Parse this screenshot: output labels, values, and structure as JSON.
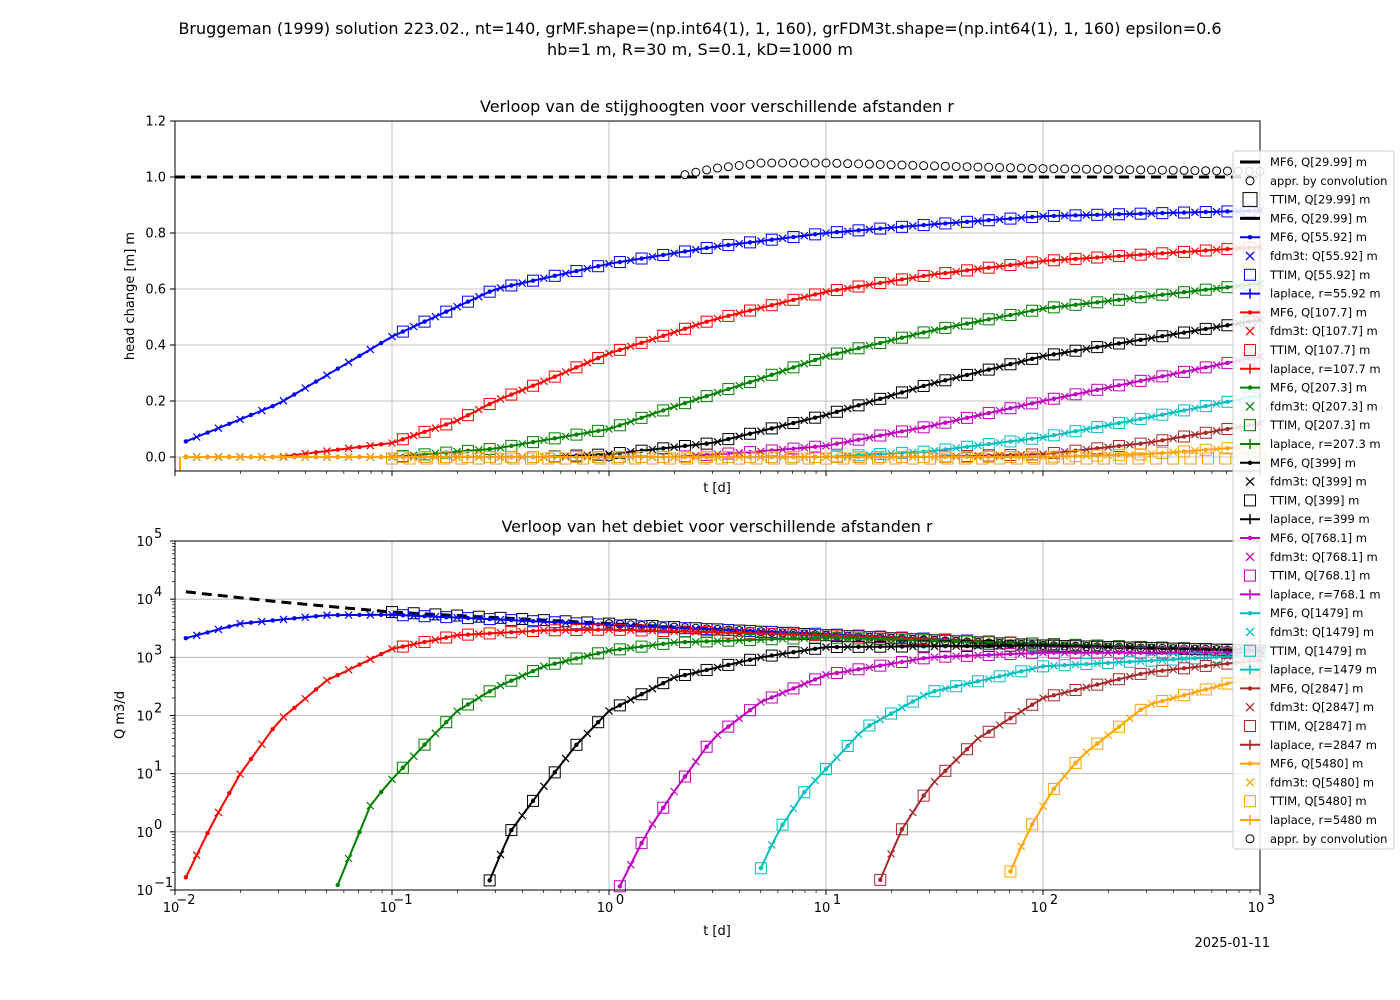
{
  "figure": {
    "suptitle": [
      "Bruggeman (1999) solution 223.02., nt=140, grMF.shape=(np.int64(1), 1, 160), grFDM3t.shape=(np.int64(1), 1, 160) epsilon=0.6",
      "hb=1 m, R=30 m, S=0.1, kD=1000 m"
    ],
    "date": "2025-01-11"
  },
  "colors": {
    "r_29.99": "#000000",
    "r_55.92": "#0000ff",
    "r_107.7": "#ff0000",
    "r_207.3": "#008000",
    "r_399": "#000000",
    "r_768.1": "#bf00bf",
    "r_1479": "#00bfbf",
    "r_2847": "#a52a2a",
    "r_5480": "#ffa500"
  },
  "legend": [
    "MF6,   Q[29.99] m",
    "appr. by convolution",
    "TTIM,   Q[29.99] m",
    "MF6,   Q[29.99] m",
    "MF6,   Q[55.92] m",
    "fdm3t: Q[55.92] m",
    "TTIM,  Q[55.92] m",
    "laplace, r=55.92 m",
    "MF6,   Q[107.7] m",
    "fdm3t: Q[107.7] m",
    "TTIM,  Q[107.7] m",
    "laplace, r=107.7 m",
    "MF6,   Q[207.3] m",
    "fdm3t: Q[207.3] m",
    "TTIM,  Q[207.3] m",
    "laplace, r=207.3 m",
    "MF6,   Q[399] m",
    "fdm3t: Q[399] m",
    "TTIM,  Q[399] m",
    "laplace, r=399 m",
    "MF6,   Q[768.1] m",
    "fdm3t: Q[768.1] m",
    "TTIM,  Q[768.1] m",
    "laplace, r=768.1 m",
    "MF6,   Q[1479] m",
    "fdm3t: Q[1479] m",
    "TTIM,  Q[1479] m",
    "laplace, r=1479 m",
    "MF6,   Q[2847] m",
    "fdm3t: Q[2847] m",
    "TTIM,  Q[2847] m",
    "laplace, r=2847 m",
    "MF6,   Q[5480] m",
    "fdm3t: Q[5480] m",
    "TTIM,  Q[5480] m",
    "laplace, r=5480 m",
    "appr. by convolution"
  ],
  "chart_data": [
    {
      "type": "line",
      "title": "Verloop van de stijghoogten voor verschillende afstanden r",
      "xlabel": "t [d]",
      "ylabel": "head change [m] m",
      "xscale": "log",
      "xlim": [
        0.01,
        1000
      ],
      "ylim": [
        -0.05,
        1.2
      ],
      "yticks": [
        "0.0",
        "0.2",
        "0.4",
        "0.6",
        "0.8",
        "1.0",
        "1.2"
      ],
      "grid": true,
      "legend_position": "right, outside",
      "series_approx": [
        {
          "r": "29.99",
          "points": [
            [
              0.01,
              1.0
            ],
            [
              1000,
              1.0
            ]
          ]
        },
        {
          "r": "55.92",
          "points": [
            [
              0.01,
              0.04
            ],
            [
              0.03,
              0.19
            ],
            [
              0.1,
              0.43
            ],
            [
              0.3,
              0.6
            ],
            [
              1,
              0.69
            ],
            [
              3,
              0.75
            ],
            [
              10,
              0.8
            ],
            [
              30,
              0.83
            ],
            [
              100,
              0.86
            ],
            [
              1000,
              0.88
            ]
          ]
        },
        {
          "r": "107.7",
          "points": [
            [
              0.03,
              0.0
            ],
            [
              0.1,
              0.05
            ],
            [
              0.2,
              0.13
            ],
            [
              0.3,
              0.2
            ],
            [
              0.5,
              0.27
            ],
            [
              1,
              0.37
            ],
            [
              3,
              0.49
            ],
            [
              10,
              0.59
            ],
            [
              30,
              0.65
            ],
            [
              100,
              0.7
            ],
            [
              1000,
              0.75
            ]
          ]
        },
        {
          "r": "207.3",
          "points": [
            [
              0.1,
              0.0
            ],
            [
              0.3,
              0.03
            ],
            [
              1,
              0.1
            ],
            [
              2,
              0.18
            ],
            [
              5,
              0.28
            ],
            [
              10,
              0.36
            ],
            [
              30,
              0.45
            ],
            [
              100,
              0.53
            ],
            [
              1000,
              0.62
            ]
          ]
        },
        {
          "r": "399",
          "points": [
            [
              0.5,
              0.0
            ],
            [
              1,
              0.01
            ],
            [
              3,
              0.05
            ],
            [
              10,
              0.15
            ],
            [
              30,
              0.26
            ],
            [
              100,
              0.36
            ],
            [
              1000,
              0.49
            ]
          ]
        },
        {
          "r": "768.1",
          "points": [
            [
              2,
              0.0
            ],
            [
              5,
              0.02
            ],
            [
              10,
              0.04
            ],
            [
              30,
              0.11
            ],
            [
              100,
              0.2
            ],
            [
              1000,
              0.36
            ]
          ]
        },
        {
          "r": "1479",
          "points": [
            [
              10,
              0.0
            ],
            [
              30,
              0.02
            ],
            [
              100,
              0.07
            ],
            [
              300,
              0.14
            ],
            [
              1000,
              0.22
            ]
          ]
        },
        {
          "r": "2847",
          "points": [
            [
              30,
              0.0
            ],
            [
              100,
              0.01
            ],
            [
              300,
              0.05
            ],
            [
              1000,
              0.12
            ]
          ]
        },
        {
          "r": "5480",
          "points": [
            [
              100,
              0.0
            ],
            [
              300,
              0.01
            ],
            [
              1000,
              0.04
            ]
          ]
        },
        {
          "r": "convolution",
          "points": [
            [
              1,
              0.0
            ],
            [
              2,
              1.0
            ],
            [
              3,
              1.03
            ],
            [
              5,
              1.05
            ],
            [
              10,
              1.05
            ],
            [
              30,
              1.04
            ],
            [
              100,
              1.03
            ],
            [
              1000,
              1.02
            ]
          ]
        }
      ]
    },
    {
      "type": "line",
      "title": "Verloop van het debiet voor verschillende afstanden r",
      "xlabel": "t [d]",
      "ylabel": "Q m3/d",
      "xscale": "log",
      "yscale": "log",
      "xlim": [
        0.01,
        1000
      ],
      "ylim": [
        0.1,
        100000
      ],
      "grid": true,
      "series_approx": [
        {
          "r": "29.99",
          "points": [
            [
              0.01,
              14000
            ],
            [
              0.03,
              9000
            ],
            [
              0.1,
              6000
            ],
            [
              1,
              3800
            ],
            [
              10,
              2400
            ],
            [
              100,
              1600
            ],
            [
              1000,
              1300
            ]
          ]
        },
        {
          "r": "55.92",
          "points": [
            [
              0.01,
              1900
            ],
            [
              0.02,
              3800
            ],
            [
              0.05,
              5300
            ],
            [
              0.1,
              5400
            ],
            [
              0.3,
              4500
            ],
            [
              1,
              3600
            ],
            [
              10,
              2500
            ],
            [
              100,
              1700
            ],
            [
              1000,
              1300
            ]
          ]
        },
        {
          "r": "107.7",
          "points": [
            [
              0.0105,
              0.1
            ],
            [
              0.015,
              1.5
            ],
            [
              0.02,
              10
            ],
            [
              0.03,
              80
            ],
            [
              0.05,
              400
            ],
            [
              0.1,
              1400
            ],
            [
              0.2,
              2400
            ],
            [
              0.5,
              2900
            ],
            [
              1,
              3000
            ],
            [
              10,
              2400
            ],
            [
              100,
              1700
            ],
            [
              1000,
              1300
            ]
          ]
        },
        {
          "r": "207.3",
          "points": [
            [
              0.055,
              0.1
            ],
            [
              0.08,
              3
            ],
            [
              0.1,
              8
            ],
            [
              0.15,
              40
            ],
            [
              0.2,
              120
            ],
            [
              0.3,
              300
            ],
            [
              0.5,
              700
            ],
            [
              1,
              1300
            ],
            [
              2,
              1800
            ],
            [
              10,
              2200
            ],
            [
              100,
              1700
            ],
            [
              1000,
              1300
            ]
          ]
        },
        {
          "r": "399",
          "points": [
            [
              0.27,
              0.1
            ],
            [
              0.35,
              1
            ],
            [
              0.5,
              6
            ],
            [
              0.7,
              30
            ],
            [
              1,
              120
            ],
            [
              2,
              450
            ],
            [
              5,
              1000
            ],
            [
              10,
              1500
            ],
            [
              100,
              1600
            ],
            [
              1000,
              1300
            ]
          ]
        },
        {
          "r": "768.1",
          "points": [
            [
              1.1,
              0.1
            ],
            [
              1.5,
              1
            ],
            [
              2,
              5
            ],
            [
              3,
              40
            ],
            [
              5,
              170
            ],
            [
              10,
              500
            ],
            [
              30,
              1000
            ],
            [
              100,
              1200
            ],
            [
              1000,
              1200
            ]
          ]
        },
        {
          "r": "1479",
          "points": [
            [
              4.5,
              0.1
            ],
            [
              6,
              1
            ],
            [
              8,
              5
            ],
            [
              10,
              12
            ],
            [
              15,
              60
            ],
            [
              30,
              250
            ],
            [
              100,
              700
            ],
            [
              1000,
              1100
            ]
          ]
        },
        {
          "r": "2847",
          "points": [
            [
              17,
              0.1
            ],
            [
              22,
              1
            ],
            [
              30,
              6
            ],
            [
              50,
              40
            ],
            [
              100,
              200
            ],
            [
              300,
              550
            ],
            [
              1000,
              900
            ]
          ]
        },
        {
          "r": "5480",
          "points": [
            [
              65,
              0.1
            ],
            [
              85,
              1
            ],
            [
              110,
              5
            ],
            [
              150,
              20
            ],
            [
              300,
              150
            ],
            [
              1000,
              500
            ]
          ]
        }
      ]
    }
  ],
  "axes_top": {
    "title": "Verloop van de stijghoogten voor verschillende afstanden r",
    "xlabel": "t [d]",
    "ylabel": "head change [m] m",
    "yticks": [
      "0.0",
      "0.2",
      "0.4",
      "0.6",
      "0.8",
      "1.0",
      "1.2"
    ]
  },
  "axes_bottom": {
    "title": "Verloop van het debiet voor verschillende afstanden r",
    "xlabel": "t [d]",
    "ylabel": "Q m3/d"
  },
  "xtick_labels": [
    "10",
    "10",
    "10",
    "10",
    "10",
    "10"
  ],
  "xtick_exps": [
    "−2",
    "−1",
    "0",
    "1",
    "2",
    "3"
  ],
  "ytick_bottom_exps": [
    "−1",
    "0",
    "1",
    "2",
    "3",
    "4",
    "5"
  ]
}
